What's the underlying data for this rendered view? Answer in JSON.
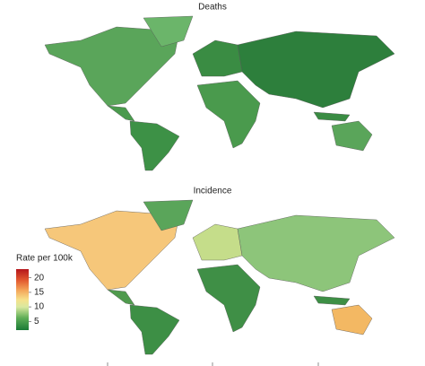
{
  "maps": [
    {
      "title": "Deaths"
    },
    {
      "title": "Incidence"
    }
  ],
  "legend": {
    "title": "Rate per 100k",
    "ticks": [
      5,
      10,
      15,
      20
    ],
    "range": [
      2,
      23
    ]
  }
}
